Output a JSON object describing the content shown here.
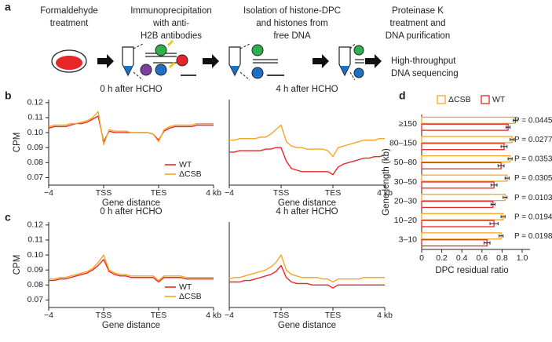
{
  "panel_labels": [
    "a",
    "b",
    "c",
    "d"
  ],
  "schematic": {
    "steps": [
      [
        "Formaldehyde",
        "treatment"
      ],
      [
        "Immunoprecipitation",
        "with anti-",
        "H2B antibodies"
      ],
      [
        "Isolation of histone-DPC",
        "and histones from",
        "free DNA"
      ],
      [
        "Proteinase K",
        "treatment and",
        "DNA purification"
      ]
    ],
    "final_step": [
      "High-throughput",
      "DNA sequencing"
    ]
  },
  "chart_data": [
    {
      "type": "line",
      "title": "0 h after HCHO",
      "xlabel": "Gene distance",
      "ylabel": "CPM",
      "x": [
        0,
        1,
        2,
        3,
        4,
        5,
        6,
        7,
        8,
        9,
        10,
        11,
        12,
        13,
        14,
        15,
        16,
        17,
        18,
        19,
        20,
        21,
        22,
        23,
        24,
        25,
        26,
        27,
        28,
        29,
        30
      ],
      "xlim": [
        0,
        30
      ],
      "xticks": [
        {
          "value": 0,
          "label": "−4"
        },
        {
          "value": 10,
          "label": "TSS"
        },
        {
          "value": 20,
          "label": "TES"
        },
        {
          "value": 30,
          "label": "4 kb"
        }
      ],
      "ylim": [
        0.065,
        0.122
      ],
      "yticks": [
        0.07,
        0.08,
        0.09,
        {
          "value": 0.1,
          "label": "0.10"
        },
        0.11,
        0.12
      ],
      "legend": "lower right",
      "series": [
        {
          "name": "WT",
          "color": "#e8262a",
          "values": [
            0.103,
            0.104,
            0.104,
            0.104,
            0.105,
            0.106,
            0.106,
            0.107,
            0.109,
            0.111,
            0.094,
            0.101,
            0.1,
            0.1,
            0.1,
            0.1,
            0.1,
            0.1,
            0.1,
            0.099,
            0.095,
            0.101,
            0.103,
            0.104,
            0.104,
            0.104,
            0.104,
            0.105,
            0.105,
            0.105,
            0.105
          ]
        },
        {
          "name": "ΔCSB",
          "color": "#f5a623",
          "values": [
            0.104,
            0.105,
            0.105,
            0.105,
            0.106,
            0.106,
            0.107,
            0.108,
            0.11,
            0.114,
            0.092,
            0.102,
            0.101,
            0.101,
            0.101,
            0.1,
            0.1,
            0.1,
            0.1,
            0.099,
            0.094,
            0.102,
            0.104,
            0.105,
            0.105,
            0.105,
            0.105,
            0.106,
            0.106,
            0.106,
            0.106
          ]
        }
      ]
    },
    {
      "type": "line",
      "title": "4 h after HCHO",
      "xlabel": "Gene distance",
      "x": [
        0,
        1,
        2,
        3,
        4,
        5,
        6,
        7,
        8,
        9,
        10,
        11,
        12,
        13,
        14,
        15,
        16,
        17,
        18,
        19,
        20,
        21,
        22,
        23,
        24,
        25,
        26,
        27,
        28,
        29,
        30
      ],
      "xlim": [
        0,
        30
      ],
      "xticks": [
        {
          "value": 0,
          "label": "−4"
        },
        {
          "value": 10,
          "label": "TSS"
        },
        {
          "value": 20,
          "label": "TES"
        },
        {
          "value": 30,
          "label": "4 kb"
        }
      ],
      "ylim": [
        0.065,
        0.122
      ],
      "series": [
        {
          "name": "WT",
          "color": "#e8262a",
          "values": [
            0.087,
            0.087,
            0.088,
            0.088,
            0.088,
            0.088,
            0.088,
            0.089,
            0.089,
            0.09,
            0.09,
            0.081,
            0.076,
            0.075,
            0.074,
            0.074,
            0.074,
            0.074,
            0.074,
            0.074,
            0.072,
            0.077,
            0.079,
            0.08,
            0.081,
            0.082,
            0.083,
            0.083,
            0.084,
            0.084,
            0.085
          ]
        },
        {
          "name": "ΔCSB",
          "color": "#f5a623",
          "values": [
            0.095,
            0.095,
            0.096,
            0.096,
            0.096,
            0.096,
            0.097,
            0.097,
            0.099,
            0.102,
            0.105,
            0.094,
            0.091,
            0.09,
            0.09,
            0.089,
            0.089,
            0.089,
            0.089,
            0.088,
            0.084,
            0.09,
            0.091,
            0.092,
            0.093,
            0.094,
            0.095,
            0.095,
            0.095,
            0.096,
            0.096
          ]
        }
      ]
    },
    {
      "type": "line",
      "title": "0 h after HCHO",
      "xlabel": "Gene distance",
      "ylabel": "CPM",
      "x": [
        0,
        1,
        2,
        3,
        4,
        5,
        6,
        7,
        8,
        9,
        10,
        11,
        12,
        13,
        14,
        15,
        16,
        17,
        18,
        19,
        20,
        21,
        22,
        23,
        24,
        25,
        26,
        27,
        28,
        29,
        30
      ],
      "xlim": [
        0,
        30
      ],
      "xticks": [
        {
          "value": 0,
          "label": "−4"
        },
        {
          "value": 10,
          "label": "TSS"
        },
        {
          "value": 20,
          "label": "TES"
        },
        {
          "value": 30,
          "label": "4 kb"
        }
      ],
      "ylim": [
        0.065,
        0.122
      ],
      "yticks": [
        0.07,
        0.08,
        0.09,
        {
          "value": 0.1,
          "label": "0.10"
        },
        0.11,
        0.12
      ],
      "legend": "lower right",
      "series": [
        {
          "name": "WT",
          "color": "#e8262a",
          "values": [
            0.083,
            0.083,
            0.084,
            0.084,
            0.085,
            0.086,
            0.087,
            0.088,
            0.09,
            0.093,
            0.097,
            0.089,
            0.087,
            0.086,
            0.086,
            0.085,
            0.085,
            0.085,
            0.085,
            0.085,
            0.082,
            0.085,
            0.085,
            0.085,
            0.085,
            0.084,
            0.084,
            0.084,
            0.084,
            0.084,
            0.084
          ]
        },
        {
          "name": "ΔCSB",
          "color": "#f5a623",
          "values": [
            0.084,
            0.084,
            0.085,
            0.085,
            0.086,
            0.087,
            0.088,
            0.089,
            0.091,
            0.095,
            0.1,
            0.09,
            0.088,
            0.087,
            0.087,
            0.086,
            0.086,
            0.086,
            0.086,
            0.086,
            0.083,
            0.086,
            0.086,
            0.086,
            0.086,
            0.085,
            0.085,
            0.085,
            0.085,
            0.085,
            0.085
          ]
        }
      ]
    },
    {
      "type": "line",
      "title": "4 h after HCHO",
      "xlabel": "Gene distance",
      "x": [
        0,
        1,
        2,
        3,
        4,
        5,
        6,
        7,
        8,
        9,
        10,
        11,
        12,
        13,
        14,
        15,
        16,
        17,
        18,
        19,
        20,
        21,
        22,
        23,
        24,
        25,
        26,
        27,
        28,
        29,
        30
      ],
      "xlim": [
        0,
        30
      ],
      "xticks": [
        {
          "value": 0,
          "label": "−4"
        },
        {
          "value": 10,
          "label": "TSS"
        },
        {
          "value": 20,
          "label": "TES"
        },
        {
          "value": 30,
          "label": "4 kb"
        }
      ],
      "ylim": [
        0.065,
        0.122
      ],
      "series": [
        {
          "name": "WT",
          "color": "#e8262a",
          "values": [
            0.082,
            0.082,
            0.082,
            0.083,
            0.083,
            0.084,
            0.085,
            0.086,
            0.087,
            0.089,
            0.093,
            0.085,
            0.082,
            0.081,
            0.081,
            0.081,
            0.08,
            0.08,
            0.08,
            0.08,
            0.078,
            0.08,
            0.08,
            0.08,
            0.08,
            0.08,
            0.08,
            0.08,
            0.08,
            0.08,
            0.08
          ]
        },
        {
          "name": "ΔCSB",
          "color": "#f5a623",
          "values": [
            0.084,
            0.085,
            0.085,
            0.086,
            0.087,
            0.088,
            0.089,
            0.09,
            0.092,
            0.095,
            0.1,
            0.09,
            0.087,
            0.086,
            0.085,
            0.085,
            0.085,
            0.085,
            0.084,
            0.084,
            0.082,
            0.084,
            0.084,
            0.084,
            0.084,
            0.084,
            0.085,
            0.085,
            0.085,
            0.085,
            0.085
          ]
        }
      ]
    },
    {
      "type": "barh",
      "xlabel": "DPC residual ratio",
      "ylabel": "Gene length (kb)",
      "categories": [
        "≥150",
        "80–150",
        "50–80",
        "30–50",
        "20–30",
        "10–20",
        "3–10"
      ],
      "xlim": [
        0,
        1
      ],
      "xticks": [
        0,
        0.2,
        0.4,
        0.6,
        0.8,
        {
          "value": 1,
          "label": "1.0"
        }
      ],
      "legend": "top",
      "series": [
        {
          "name": "ΔCSB",
          "color": "#f5a623",
          "values": [
            0.93,
            0.9,
            0.88,
            0.85,
            0.83,
            0.81,
            0.79
          ],
          "errors": [
            0.02,
            0.02,
            0.02,
            0.02,
            0.02,
            0.02,
            0.02
          ]
        },
        {
          "name": "WT",
          "color": "#e8262a",
          "values": [
            0.86,
            0.82,
            0.79,
            0.72,
            0.71,
            0.72,
            0.65
          ],
          "errors": [
            0.02,
            0.03,
            0.03,
            0.03,
            0.02,
            0.04,
            0.03
          ]
        }
      ],
      "annotations": [
        "P = 0.0445",
        "P = 0.0277",
        "P = 0.0353",
        "P = 0.0305",
        "P = 0.0103",
        "P = 0.0194",
        "P = 0.0198"
      ]
    }
  ]
}
